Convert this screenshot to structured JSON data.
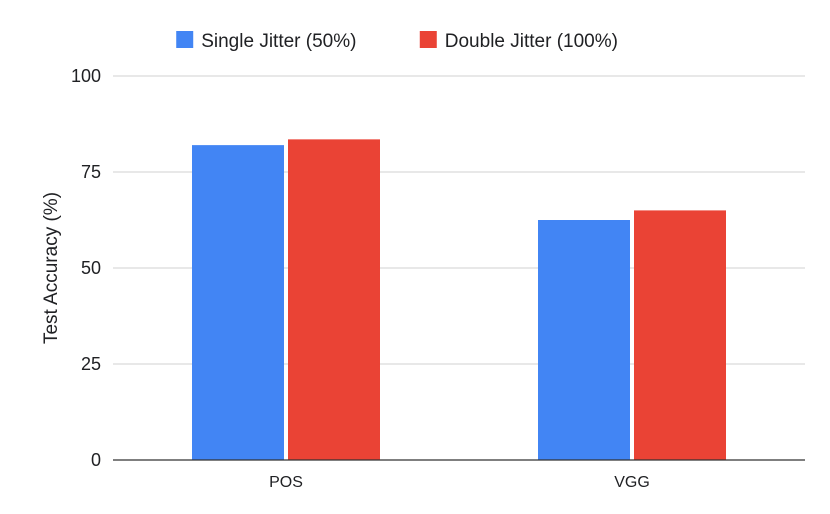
{
  "chart_data": {
    "type": "bar",
    "title": "",
    "xlabel": "",
    "ylabel": "Test Accuracy (%)",
    "categories": [
      "POS",
      "VGG"
    ],
    "series": [
      {
        "name": "Single Jitter (50%)",
        "values": [
          82,
          62.5
        ],
        "color": "#4285f4"
      },
      {
        "name": "Double Jitter (100%)",
        "values": [
          83.5,
          65
        ],
        "color": "#ea4335"
      }
    ],
    "ylim": [
      0,
      100
    ],
    "yticks": [
      0,
      25,
      50,
      75,
      100
    ],
    "grid": true,
    "legend_position": "top"
  }
}
